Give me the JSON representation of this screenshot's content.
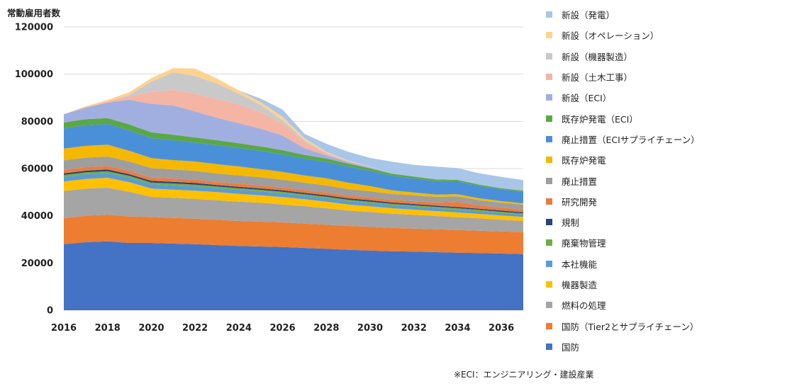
{
  "chart_data": {
    "type": "area",
    "stacked": true,
    "ylabel": "常動雇用者数",
    "ylim": [
      0,
      120000
    ],
    "yticks": [
      0,
      20000,
      40000,
      60000,
      80000,
      100000,
      120000
    ],
    "xlim": [
      2016,
      2037
    ],
    "xticks": [
      2016,
      2018,
      2020,
      2022,
      2024,
      2026,
      2028,
      2030,
      2032,
      2034,
      2036
    ],
    "grid": "y",
    "legend_position": "right",
    "footnote": "※ECI：エンジニアリング・建設産業",
    "x": [
      2016,
      2017,
      2018,
      2019,
      2020,
      2021,
      2022,
      2023,
      2024,
      2025,
      2026,
      2027,
      2028,
      2029,
      2030,
      2031,
      2032,
      2033,
      2034,
      2035,
      2036,
      2037
    ],
    "series": [
      {
        "name": "国防",
        "color": "#4472c4",
        "values": [
          28000,
          28800,
          29200,
          28500,
          28500,
          28200,
          28000,
          27600,
          27200,
          27000,
          26800,
          26400,
          26000,
          25600,
          25300,
          25000,
          24800,
          24600,
          24400,
          24200,
          24000,
          23800
        ]
      },
      {
        "name": "国防（Tier2とサプライチェーン）",
        "color": "#ed7d31",
        "values": [
          11000,
          11200,
          11300,
          11200,
          11000,
          10900,
          10800,
          10700,
          10600,
          10500,
          10400,
          10300,
          10200,
          10100,
          10000,
          9900,
          9800,
          9700,
          9600,
          9500,
          9400,
          9300
        ]
      },
      {
        "name": "燃料の処理",
        "color": "#a5a5a5",
        "values": [
          11500,
          11500,
          11400,
          10500,
          8500,
          8500,
          8400,
          8300,
          8200,
          8000,
          7600,
          7400,
          7000,
          6500,
          6300,
          6000,
          5800,
          5600,
          5400,
          5200,
          4900,
          4700
        ]
      },
      {
        "name": "機器製造",
        "color": "#ffc000",
        "values": [
          4000,
          4100,
          4200,
          4000,
          3500,
          3500,
          3400,
          3400,
          3300,
          3200,
          3100,
          2900,
          2800,
          2600,
          2400,
          2300,
          2200,
          2100,
          2000,
          1900,
          1800,
          1700
        ]
      },
      {
        "name": "本社機能",
        "color": "#5b9bd5",
        "values": [
          2000,
          2000,
          2000,
          1900,
          1800,
          1800,
          1800,
          1700,
          1700,
          1600,
          1600,
          1500,
          1500,
          1400,
          1400,
          1300,
          1300,
          1200,
          1200,
          1100,
          1100,
          1000
        ]
      },
      {
        "name": "廃棄物管理",
        "color": "#70ad47",
        "values": [
          800,
          800,
          800,
          800,
          800,
          800,
          800,
          700,
          700,
          700,
          700,
          600,
          600,
          600,
          600,
          600,
          600,
          600,
          600,
          600,
          500,
          500
        ]
      },
      {
        "name": "規制",
        "color": "#264478",
        "values": [
          700,
          700,
          700,
          700,
          700,
          700,
          700,
          600,
          600,
          600,
          600,
          600,
          600,
          600,
          600,
          500,
          500,
          500,
          500,
          500,
          500,
          500
        ]
      },
      {
        "name": "研究開発",
        "color": "#eb7c40",
        "values": [
          1500,
          1500,
          1500,
          1400,
          1400,
          1400,
          1400,
          1300,
          1300,
          1300,
          1200,
          1200,
          1200,
          1100,
          1100,
          1100,
          1200,
          1300,
          2200,
          1400,
          1200,
          1200
        ]
      },
      {
        "name": "廃止措置",
        "color": "#9e9e9e",
        "values": [
          4000,
          4000,
          4000,
          4000,
          4000,
          3800,
          3700,
          3600,
          3500,
          3400,
          3300,
          3100,
          3000,
          2800,
          2700,
          2600,
          2500,
          2400,
          2300,
          2200,
          2100,
          2000
        ]
      },
      {
        "name": "既存炉発電",
        "color": "#f5b800",
        "values": [
          5000,
          5000,
          5000,
          4500,
          4200,
          4000,
          4000,
          4000,
          3800,
          3500,
          3300,
          3100,
          3000,
          2700,
          2200,
          1500,
          1200,
          1000,
          900,
          800,
          700,
          600
        ]
      },
      {
        "name": "廃止措置（ECIサプライチェーン）",
        "color": "#4a90d9",
        "values": [
          8500,
          8800,
          8800,
          8700,
          8500,
          8400,
          8000,
          8000,
          7800,
          7700,
          7400,
          7100,
          6900,
          6800,
          6400,
          6100,
          5900,
          5700,
          5500,
          5200,
          5000,
          4800
        ]
      },
      {
        "name": "既存炉発電（ECI）",
        "color": "#5aa845",
        "values": [
          2500,
          2500,
          2500,
          2500,
          2500,
          2300,
          2200,
          2100,
          2000,
          1900,
          1800,
          1600,
          1500,
          1300,
          1100,
          900,
          800,
          700,
          600,
          600,
          500,
          500
        ]
      },
      {
        "name": "新設（ECI）",
        "color": "#a1afe0",
        "values": [
          3500,
          5000,
          6500,
          10500,
          12000,
          12500,
          11000,
          9500,
          8500,
          7500,
          6200,
          2800,
          1300,
          700,
          400,
          200,
          100,
          0,
          0,
          0,
          0,
          0
        ]
      },
      {
        "name": "新設（土木工事）",
        "color": "#f4b5a4",
        "values": [
          0,
          0,
          500,
          1500,
          5000,
          6500,
          7500,
          8000,
          8000,
          7000,
          5000,
          2800,
          800,
          300,
          100,
          0,
          0,
          0,
          0,
          0,
          0,
          0
        ]
      },
      {
        "name": "新設（機器製造）",
        "color": "#c9c9c9",
        "values": [
          0,
          0,
          0,
          500,
          4500,
          7500,
          7500,
          6500,
          4500,
          3000,
          1500,
          600,
          200,
          100,
          0,
          0,
          0,
          0,
          0,
          0,
          0,
          0
        ]
      },
      {
        "name": "新設（オペレーション）",
        "color": "#ffd28f",
        "values": [
          0,
          500,
          700,
          1200,
          1400,
          1700,
          3200,
          2200,
          1400,
          1200,
          1500,
          800,
          500,
          200,
          100,
          0,
          0,
          0,
          0,
          0,
          0,
          0
        ]
      },
      {
        "name": "新設（発電）",
        "color": "#a9c6e8",
        "values": [
          0,
          0,
          0,
          0,
          0,
          0,
          0,
          0,
          0,
          1500,
          3000,
          1900,
          3400,
          3700,
          3800,
          4900,
          4900,
          5400,
          5000,
          4800,
          4800,
          4500
        ]
      }
    ],
    "legend_order": [
      "新設（発電）",
      "新設（オペレーション）",
      "新設（機器製造）",
      "新設（土木工事）",
      "新設（ECI）",
      "既存炉発電（ECI）",
      "廃止措置（ECIサプライチェーン）",
      "既存炉発電",
      "廃止措置",
      "研究開発",
      "規制",
      "廃棄物管理",
      "本社機能",
      "機器製造",
      "燃料の処理",
      "国防（Tier2とサプライチェーン）",
      "国防"
    ]
  }
}
